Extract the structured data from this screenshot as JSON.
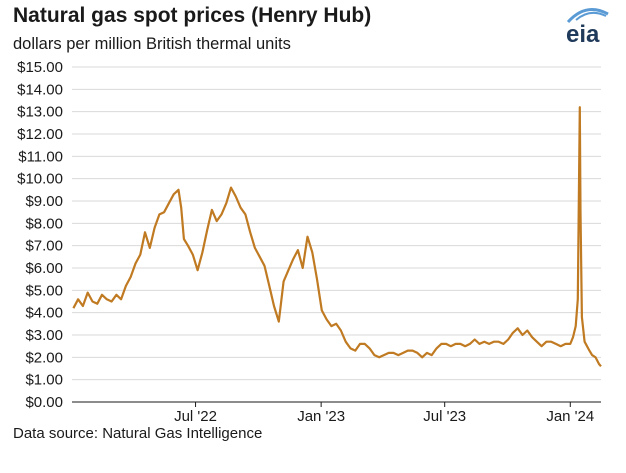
{
  "header": {
    "title": "Natural gas spot prices (Henry Hub)",
    "subtitle": "dollars per million British thermal units",
    "logo_text": "eia"
  },
  "footer": {
    "source": "Data source: Natural Gas Intelligence"
  },
  "colors": {
    "series": "#c07a22",
    "axis": "#1a1a1a",
    "gridline": "#d9d9d9",
    "logo_accent": "#5b9bd5",
    "logo_text": "#1f3a5a"
  },
  "chart_data": {
    "type": "line",
    "title": "Natural gas spot prices (Henry Hub)",
    "ylabel": "dollars per million British thermal units",
    "ylim": [
      0,
      15
    ],
    "xlim": [
      "2022-01-01",
      "2024-02-15"
    ],
    "grid": "horizontal",
    "yticks": [
      0,
      1,
      2,
      3,
      4,
      5,
      6,
      7,
      8,
      9,
      10,
      11,
      12,
      13,
      14,
      15
    ],
    "ytick_labels": [
      "$0.00",
      "$1.00",
      "$2.00",
      "$3.00",
      "$4.00",
      "$5.00",
      "$6.00",
      "$7.00",
      "$8.00",
      "$9.00",
      "$10.00",
      "$11.00",
      "$12.00",
      "$13.00",
      "$14.00",
      "$15.00"
    ],
    "xticks": [
      "2022-07-01",
      "2023-01-01",
      "2023-07-01",
      "2024-01-01"
    ],
    "xtick_labels": [
      "Jul '22",
      "Jan '23",
      "Jul '23",
      "Jan '24"
    ],
    "series": [
      {
        "values": [
          [
            "2022-01-03",
            4.2
          ],
          [
            "2022-01-10",
            4.6
          ],
          [
            "2022-01-17",
            4.3
          ],
          [
            "2022-01-24",
            4.9
          ],
          [
            "2022-01-31",
            4.5
          ],
          [
            "2022-02-07",
            4.4
          ],
          [
            "2022-02-14",
            4.8
          ],
          [
            "2022-02-21",
            4.6
          ],
          [
            "2022-02-28",
            4.5
          ],
          [
            "2022-03-07",
            4.8
          ],
          [
            "2022-03-14",
            4.6
          ],
          [
            "2022-03-21",
            5.2
          ],
          [
            "2022-03-28",
            5.6
          ],
          [
            "2022-04-04",
            6.2
          ],
          [
            "2022-04-11",
            6.6
          ],
          [
            "2022-04-18",
            7.6
          ],
          [
            "2022-04-25",
            6.9
          ],
          [
            "2022-05-02",
            7.8
          ],
          [
            "2022-05-09",
            8.4
          ],
          [
            "2022-05-16",
            8.5
          ],
          [
            "2022-05-23",
            8.9
          ],
          [
            "2022-05-30",
            9.3
          ],
          [
            "2022-06-06",
            9.5
          ],
          [
            "2022-06-10",
            8.7
          ],
          [
            "2022-06-14",
            7.3
          ],
          [
            "2022-06-20",
            7.0
          ],
          [
            "2022-06-27",
            6.6
          ],
          [
            "2022-07-04",
            5.9
          ],
          [
            "2022-07-11",
            6.7
          ],
          [
            "2022-07-18",
            7.7
          ],
          [
            "2022-07-25",
            8.6
          ],
          [
            "2022-08-01",
            8.1
          ],
          [
            "2022-08-08",
            8.4
          ],
          [
            "2022-08-15",
            8.9
          ],
          [
            "2022-08-22",
            9.6
          ],
          [
            "2022-08-29",
            9.2
          ],
          [
            "2022-09-05",
            8.7
          ],
          [
            "2022-09-12",
            8.4
          ],
          [
            "2022-09-19",
            7.6
          ],
          [
            "2022-09-26",
            6.9
          ],
          [
            "2022-10-03",
            6.5
          ],
          [
            "2022-10-10",
            6.1
          ],
          [
            "2022-10-17",
            5.2
          ],
          [
            "2022-10-24",
            4.3
          ],
          [
            "2022-10-31",
            3.6
          ],
          [
            "2022-11-07",
            5.4
          ],
          [
            "2022-11-14",
            5.9
          ],
          [
            "2022-11-21",
            6.4
          ],
          [
            "2022-11-28",
            6.8
          ],
          [
            "2022-12-05",
            6.0
          ],
          [
            "2022-12-12",
            7.4
          ],
          [
            "2022-12-19",
            6.7
          ],
          [
            "2022-12-26",
            5.5
          ],
          [
            "2023-01-02",
            4.1
          ],
          [
            "2023-01-09",
            3.7
          ],
          [
            "2023-01-16",
            3.4
          ],
          [
            "2023-01-23",
            3.5
          ],
          [
            "2023-01-30",
            3.2
          ],
          [
            "2023-02-06",
            2.7
          ],
          [
            "2023-02-13",
            2.4
          ],
          [
            "2023-02-20",
            2.3
          ],
          [
            "2023-02-27",
            2.6
          ],
          [
            "2023-03-06",
            2.6
          ],
          [
            "2023-03-13",
            2.4
          ],
          [
            "2023-03-20",
            2.1
          ],
          [
            "2023-03-27",
            2.0
          ],
          [
            "2023-04-03",
            2.1
          ],
          [
            "2023-04-10",
            2.2
          ],
          [
            "2023-04-17",
            2.2
          ],
          [
            "2023-04-24",
            2.1
          ],
          [
            "2023-05-01",
            2.2
          ],
          [
            "2023-05-08",
            2.3
          ],
          [
            "2023-05-15",
            2.3
          ],
          [
            "2023-05-22",
            2.2
          ],
          [
            "2023-05-29",
            2.0
          ],
          [
            "2023-06-05",
            2.2
          ],
          [
            "2023-06-12",
            2.1
          ],
          [
            "2023-06-19",
            2.4
          ],
          [
            "2023-06-26",
            2.6
          ],
          [
            "2023-07-03",
            2.6
          ],
          [
            "2023-07-10",
            2.5
          ],
          [
            "2023-07-17",
            2.6
          ],
          [
            "2023-07-24",
            2.6
          ],
          [
            "2023-07-31",
            2.5
          ],
          [
            "2023-08-07",
            2.6
          ],
          [
            "2023-08-14",
            2.8
          ],
          [
            "2023-08-21",
            2.6
          ],
          [
            "2023-08-28",
            2.7
          ],
          [
            "2023-09-04",
            2.6
          ],
          [
            "2023-09-11",
            2.7
          ],
          [
            "2023-09-18",
            2.7
          ],
          [
            "2023-09-25",
            2.6
          ],
          [
            "2023-10-02",
            2.8
          ],
          [
            "2023-10-09",
            3.1
          ],
          [
            "2023-10-16",
            3.3
          ],
          [
            "2023-10-23",
            3.0
          ],
          [
            "2023-10-30",
            3.2
          ],
          [
            "2023-11-06",
            2.9
          ],
          [
            "2023-11-13",
            2.7
          ],
          [
            "2023-11-20",
            2.5
          ],
          [
            "2023-11-27",
            2.7
          ],
          [
            "2023-12-04",
            2.7
          ],
          [
            "2023-12-11",
            2.6
          ],
          [
            "2023-12-18",
            2.5
          ],
          [
            "2023-12-25",
            2.6
          ],
          [
            "2024-01-01",
            2.6
          ],
          [
            "2024-01-05",
            2.9
          ],
          [
            "2024-01-09",
            3.4
          ],
          [
            "2024-01-12",
            4.6
          ],
          [
            "2024-01-15",
            13.2
          ],
          [
            "2024-01-16",
            8.5
          ],
          [
            "2024-01-18",
            3.8
          ],
          [
            "2024-01-22",
            2.7
          ],
          [
            "2024-01-29",
            2.3
          ],
          [
            "2024-02-02",
            2.1
          ],
          [
            "2024-02-07",
            2.0
          ],
          [
            "2024-02-12",
            1.7
          ],
          [
            "2024-02-15",
            1.6
          ]
        ]
      }
    ]
  }
}
